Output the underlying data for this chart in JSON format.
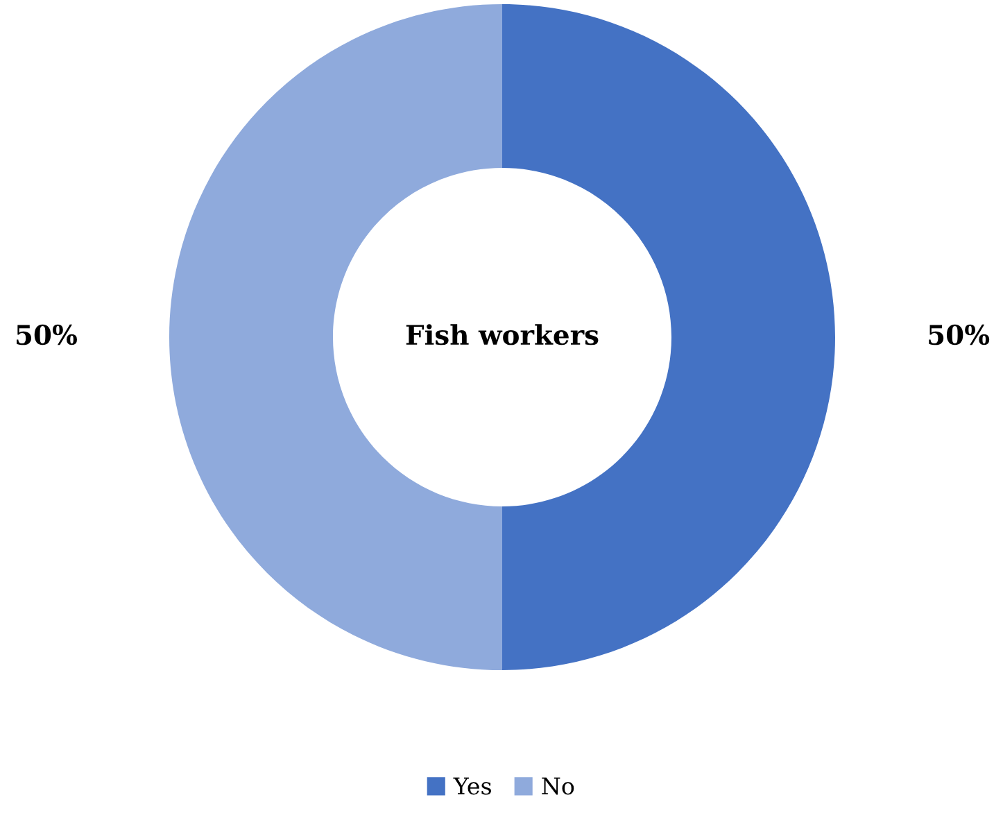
{
  "chart_data": {
    "type": "donut",
    "title": "Fish workers",
    "categories": [
      "Yes",
      "No"
    ],
    "values": [
      50,
      50
    ],
    "colors": [
      "#4472c4",
      "#8faadc"
    ],
    "value_labels": [
      "50%",
      "50%"
    ],
    "legend": "bottom"
  }
}
